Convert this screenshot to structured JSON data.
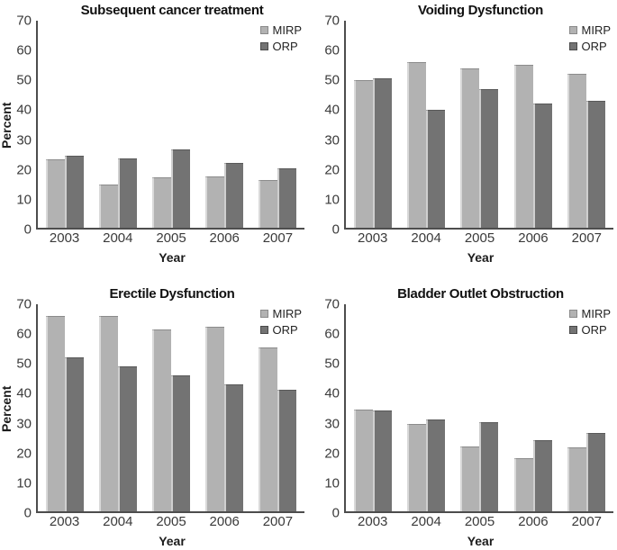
{
  "figure": {
    "background": "#ffffff",
    "axis_color": "#4d4d4d",
    "tick_text_color": "#3a3a3a",
    "title_color": "#111111",
    "series_colors": {
      "MIRP": "#b2b2b2",
      "ORP": "#737373"
    },
    "bar_edge_highlights": {
      "MIRP": "#d9d9d9",
      "ORP": "#cfcfcf"
    },
    "legend_marker_borders": {
      "MIRP": "#8a8a8a",
      "ORP": "#4a4a4a"
    }
  },
  "chart_data": [
    {
      "type": "bar",
      "title": "Subsequent cancer treatment",
      "categories": [
        "2003",
        "2004",
        "2005",
        "2006",
        "2007"
      ],
      "series": [
        {
          "name": "MIRP",
          "values": [
            23,
            14.5,
            17,
            17.5,
            16
          ]
        },
        {
          "name": "ORP",
          "values": [
            24.5,
            23.5,
            26.5,
            22,
            20
          ]
        }
      ],
      "xlabel": "Year",
      "ylabel": "Percent",
      "ylim": [
        0,
        70
      ],
      "yticks": [
        0,
        10,
        20,
        30,
        40,
        50,
        60,
        70
      ],
      "legend_position": "top-right",
      "grid": false
    },
    {
      "type": "bar",
      "title": "Voiding Dysfunction",
      "categories": [
        "2003",
        "2004",
        "2005",
        "2006",
        "2007"
      ],
      "series": [
        {
          "name": "MIRP",
          "values": [
            50,
            56,
            54,
            55,
            52
          ]
        },
        {
          "name": "ORP",
          "values": [
            50.5,
            40,
            47,
            42,
            43
          ]
        }
      ],
      "xlabel": "Year",
      "ylabel": "",
      "ylim": [
        0,
        70
      ],
      "yticks": [
        0,
        10,
        20,
        30,
        40,
        50,
        60,
        70
      ],
      "legend_position": "top-right",
      "grid": false
    },
    {
      "type": "bar",
      "title": "Erectile Dysfunction",
      "categories": [
        "2003",
        "2004",
        "2005",
        "2006",
        "2007"
      ],
      "series": [
        {
          "name": "MIRP",
          "values": [
            66,
            66,
            61.5,
            62.5,
            55.5
          ]
        },
        {
          "name": "ORP",
          "values": [
            52,
            49,
            46,
            43,
            41
          ]
        }
      ],
      "xlabel": "Year",
      "ylabel": "Percent",
      "ylim": [
        0,
        70
      ],
      "yticks": [
        0,
        10,
        20,
        30,
        40,
        50,
        60,
        70
      ],
      "legend_position": "top-right",
      "grid": false
    },
    {
      "type": "bar",
      "title": "Bladder Outlet Obstruction",
      "categories": [
        "2003",
        "2004",
        "2005",
        "2006",
        "2007"
      ],
      "series": [
        {
          "name": "MIRP",
          "values": [
            34.5,
            29.5,
            22,
            18,
            21.5
          ]
        },
        {
          "name": "ORP",
          "values": [
            34,
            31,
            30,
            24,
            26.5
          ]
        }
      ],
      "xlabel": "Year",
      "ylabel": "",
      "ylim": [
        0,
        70
      ],
      "yticks": [
        0,
        10,
        20,
        30,
        40,
        50,
        60,
        70
      ],
      "legend_position": "top-right",
      "grid": false
    }
  ]
}
